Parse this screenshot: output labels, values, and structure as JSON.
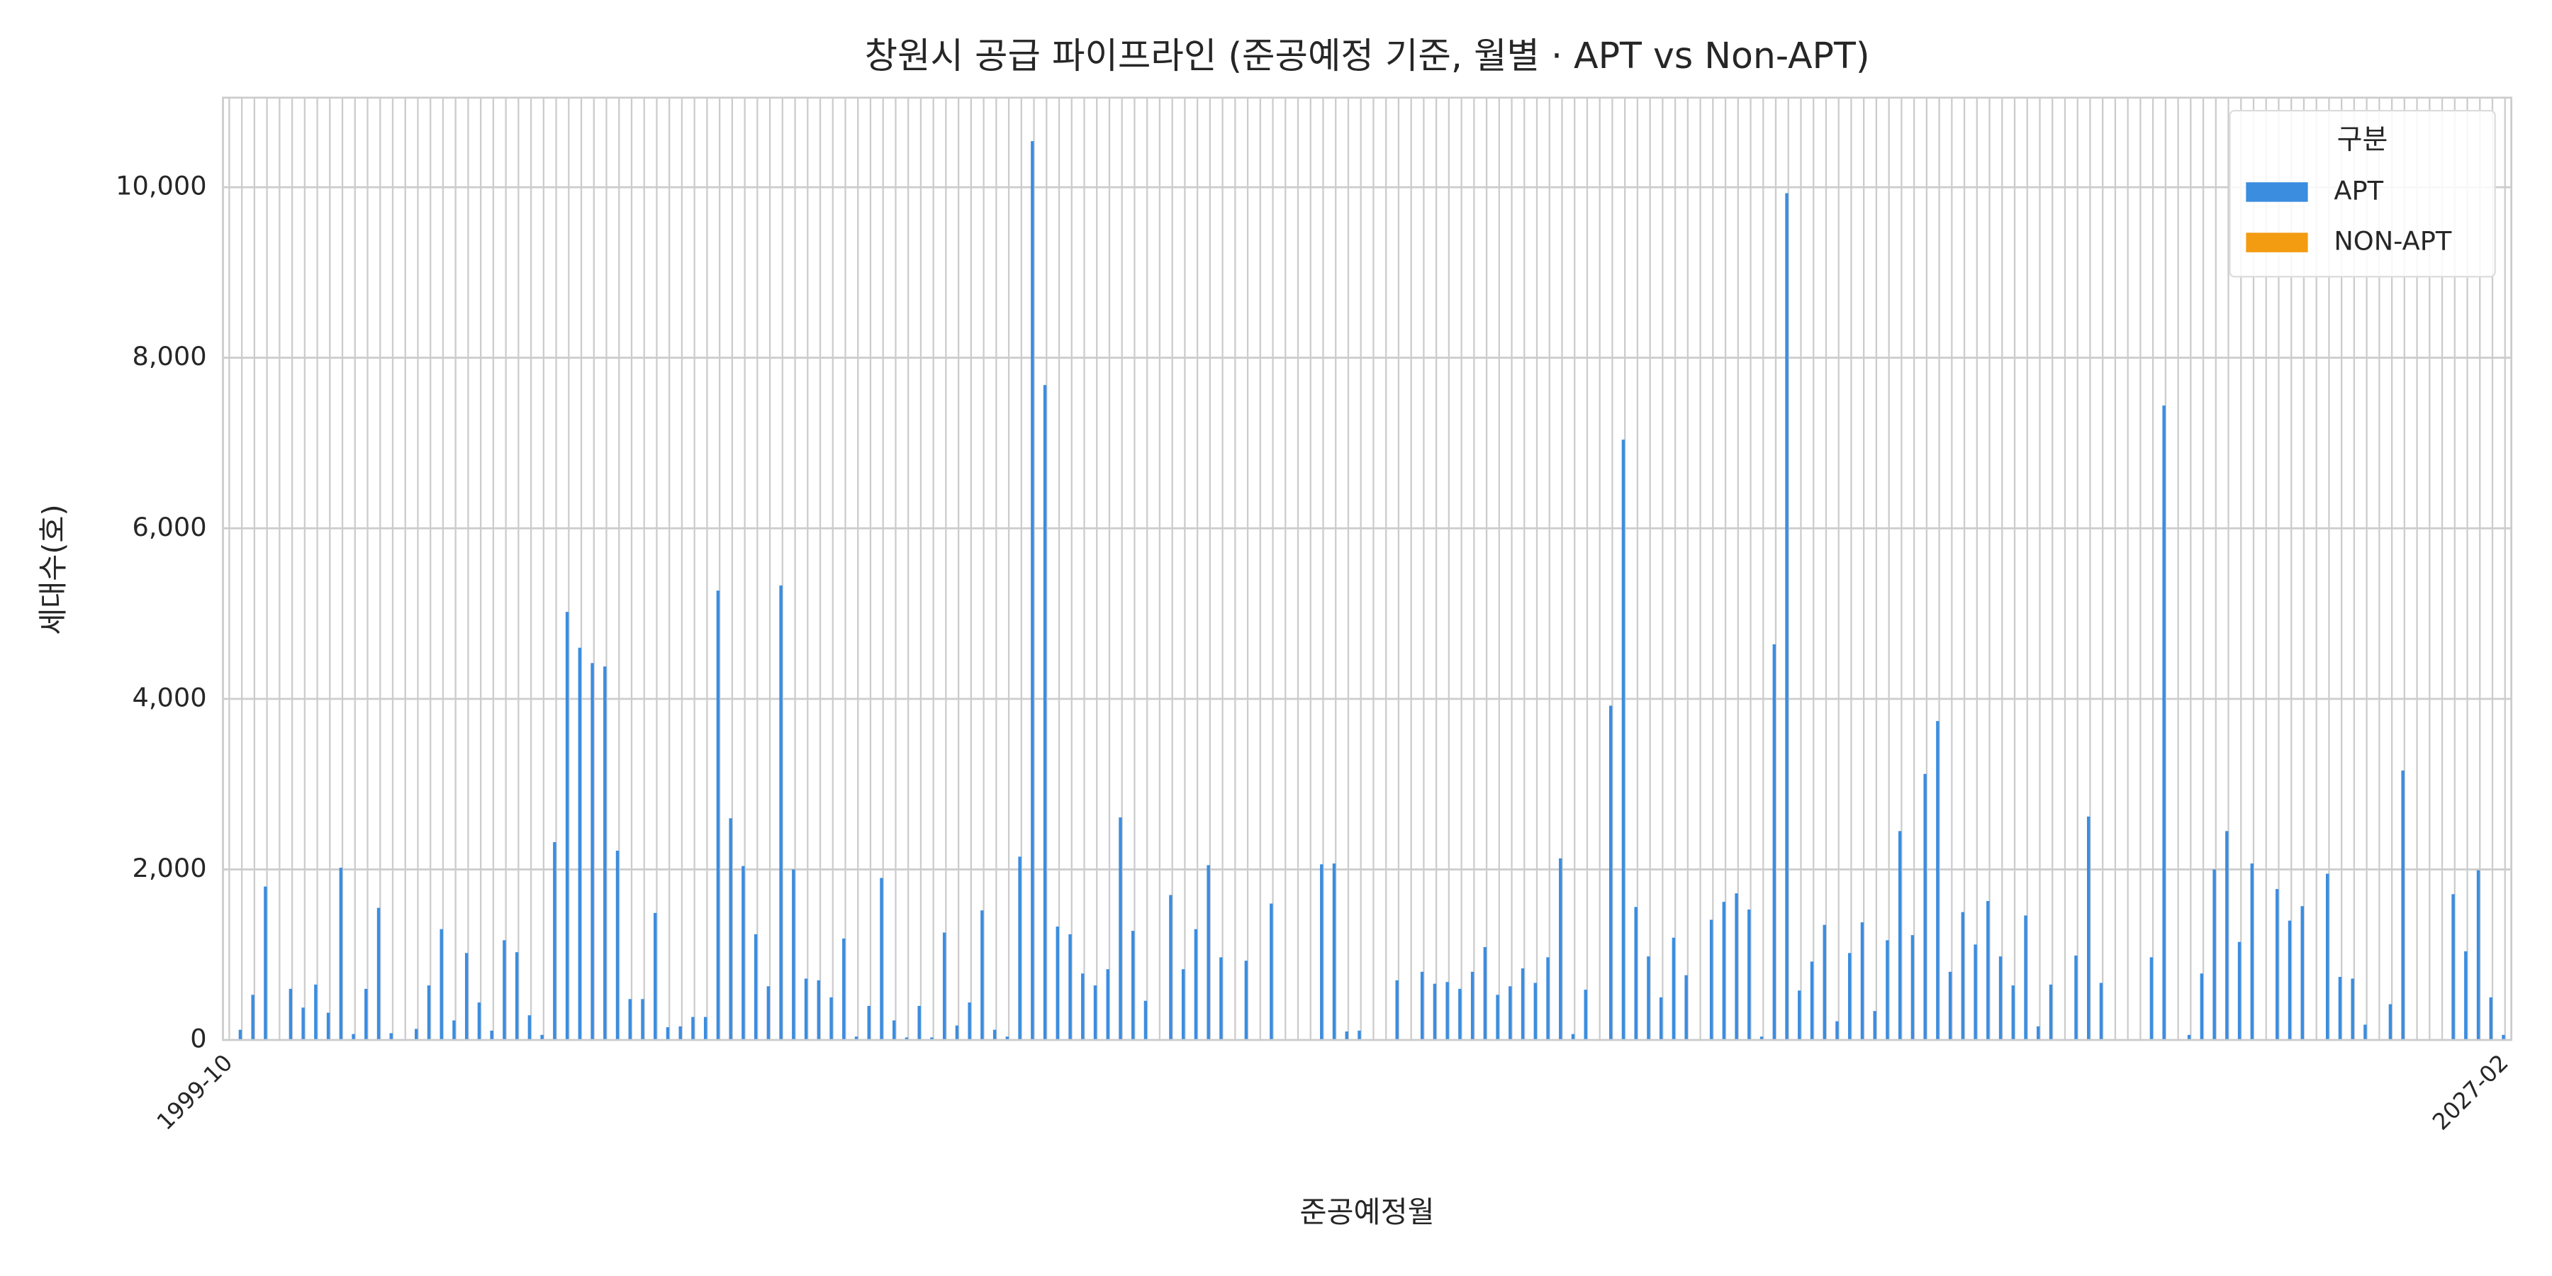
{
  "chart_data": {
    "type": "bar",
    "title": "창원시 공급 파이프라인 (준공예정 기준, 월별 · APT vs Non-APT)",
    "x_label": "준공예정월",
    "y_label": "세대수(호)",
    "legend_title": "구분",
    "legend": "upper right",
    "grid": true,
    "ylim": [
      0,
      11050
    ],
    "yticks": [
      0,
      {
        "value": 2000,
        "label": "2,000"
      },
      {
        "value": 4000,
        "label": "4,000"
      },
      {
        "value": 6000,
        "label": "6,000"
      },
      {
        "value": 8000,
        "label": "8,000"
      },
      {
        "value": 10000,
        "label": "10,000"
      }
    ],
    "categories": [
      "1999-10",
      null,
      null,
      null,
      null,
      null,
      null,
      null,
      null,
      null,
      null,
      null,
      null,
      null,
      null,
      null,
      null,
      null,
      null,
      null,
      null,
      null,
      null,
      null,
      null,
      null,
      null,
      null,
      null,
      null,
      null,
      null,
      null,
      null,
      null,
      null,
      null,
      null,
      null,
      null,
      null,
      null,
      null,
      null,
      null,
      null,
      null,
      null,
      null,
      null,
      null,
      null,
      null,
      null,
      null,
      null,
      null,
      null,
      null,
      null,
      null,
      null,
      null,
      null,
      null,
      null,
      null,
      null,
      null,
      null,
      null,
      null,
      null,
      null,
      null,
      null,
      null,
      null,
      null,
      null,
      null,
      null,
      null,
      null,
      null,
      null,
      null,
      null,
      null,
      null,
      null,
      null,
      null,
      null,
      null,
      null,
      null,
      null,
      null,
      null,
      null,
      null,
      null,
      null,
      null,
      null,
      null,
      null,
      null,
      null,
      null,
      null,
      null,
      null,
      null,
      null,
      null,
      null,
      null,
      null,
      null,
      null,
      null,
      null,
      null,
      null,
      null,
      null,
      null,
      null,
      null,
      null,
      null,
      null,
      null,
      null,
      null,
      null,
      null,
      null,
      null,
      null,
      null,
      null,
      null,
      null,
      null,
      null,
      null,
      null,
      null,
      null,
      null,
      null,
      null,
      null,
      null,
      null,
      null,
      null,
      null,
      null,
      null,
      null,
      null,
      null,
      null,
      null,
      null,
      null,
      null,
      null,
      null,
      null,
      null,
      null,
      null,
      null,
      null,
      null,
      null,
      "2027-02"
    ],
    "series": [
      {
        "name": "APT",
        "color": "#3b8de0",
        "values": [
          0,
          120,
          530,
          1800,
          0,
          600,
          380,
          650,
          320,
          2020,
          70,
          600,
          1550,
          80,
          0,
          130,
          640,
          1300,
          230,
          1020,
          440,
          110,
          1170,
          1030,
          290,
          60,
          2320,
          5020,
          4600,
          4420,
          4380,
          2220,
          480,
          480,
          1490,
          150,
          160,
          270,
          270,
          5270,
          2600,
          2040,
          1240,
          630,
          5330,
          2000,
          720,
          700,
          500,
          1190,
          40,
          400,
          1900,
          230,
          30,
          400,
          30,
          1260,
          170,
          440,
          1520,
          120,
          40,
          2150,
          10540,
          7680,
          1330,
          1240,
          780,
          640,
          830,
          2610,
          1280,
          460,
          0,
          1700,
          830,
          1300,
          2050,
          970,
          0,
          930,
          0,
          1600,
          0,
          0,
          0,
          2060,
          2070,
          100,
          110,
          0,
          0,
          700,
          0,
          800,
          660,
          680,
          600,
          800,
          1090,
          530,
          630,
          840,
          670,
          970,
          2130,
          70,
          590,
          0,
          3920,
          7040,
          1560,
          980,
          500,
          1200,
          760,
          0,
          1410,
          1620,
          1720,
          1530,
          40,
          4640,
          9930,
          580,
          920,
          1350,
          220,
          1020,
          1380,
          340,
          1170,
          2450,
          1230,
          3120,
          3740,
          800,
          1500,
          1120,
          1630,
          980,
          640,
          1460,
          160,
          650,
          0,
          990,
          2620,
          670,
          0,
          0,
          0,
          970,
          7440,
          0,
          60,
          780,
          2000,
          2450,
          1150,
          2070,
          0,
          1770,
          1400,
          1570,
          0,
          1950,
          740,
          720,
          180,
          0,
          420,
          3160,
          0,
          0,
          0,
          1710,
          1040,
          1990,
          500,
          60
        ]
      },
      {
        "name": "NON-APT",
        "color": "#f39c12",
        "values": [
          0,
          0,
          0,
          0,
          0,
          0,
          0,
          0,
          0,
          0,
          0,
          0,
          0,
          0,
          0,
          0,
          0,
          0,
          0,
          0,
          0,
          0,
          0,
          0,
          0,
          0,
          0,
          0,
          0,
          0,
          0,
          0,
          0,
          0,
          0,
          0,
          0,
          0,
          0,
          0,
          0,
          0,
          0,
          0,
          0,
          0,
          0,
          0,
          0,
          0,
          0,
          0,
          0,
          0,
          0,
          0,
          0,
          0,
          0,
          0,
          0,
          0,
          0,
          0,
          0,
          0,
          0,
          0,
          0,
          0,
          0,
          0,
          0,
          0,
          0,
          0,
          0,
          0,
          0,
          0,
          0,
          0,
          0,
          0,
          0,
          0,
          0,
          0,
          0,
          0,
          0,
          0,
          0,
          0,
          0,
          0,
          0,
          0,
          0,
          0,
          0,
          0,
          0,
          0,
          0,
          0,
          0,
          0,
          0,
          0,
          0,
          0,
          0,
          0,
          0,
          0,
          0,
          0,
          0,
          0,
          0,
          0,
          0,
          0,
          0,
          0,
          0,
          0,
          0,
          0,
          0,
          0,
          0,
          0,
          0,
          0,
          0,
          0,
          0,
          0,
          0,
          0,
          0,
          0,
          0,
          0,
          0,
          0,
          0,
          0,
          0,
          0,
          0,
          0,
          0,
          0,
          0,
          0,
          0,
          0,
          0,
          0,
          0,
          0,
          0,
          0,
          0,
          0,
          0,
          0,
          0,
          0,
          0,
          0,
          0,
          0,
          0,
          0,
          0,
          0,
          0,
          0
        ]
      }
    ]
  }
}
